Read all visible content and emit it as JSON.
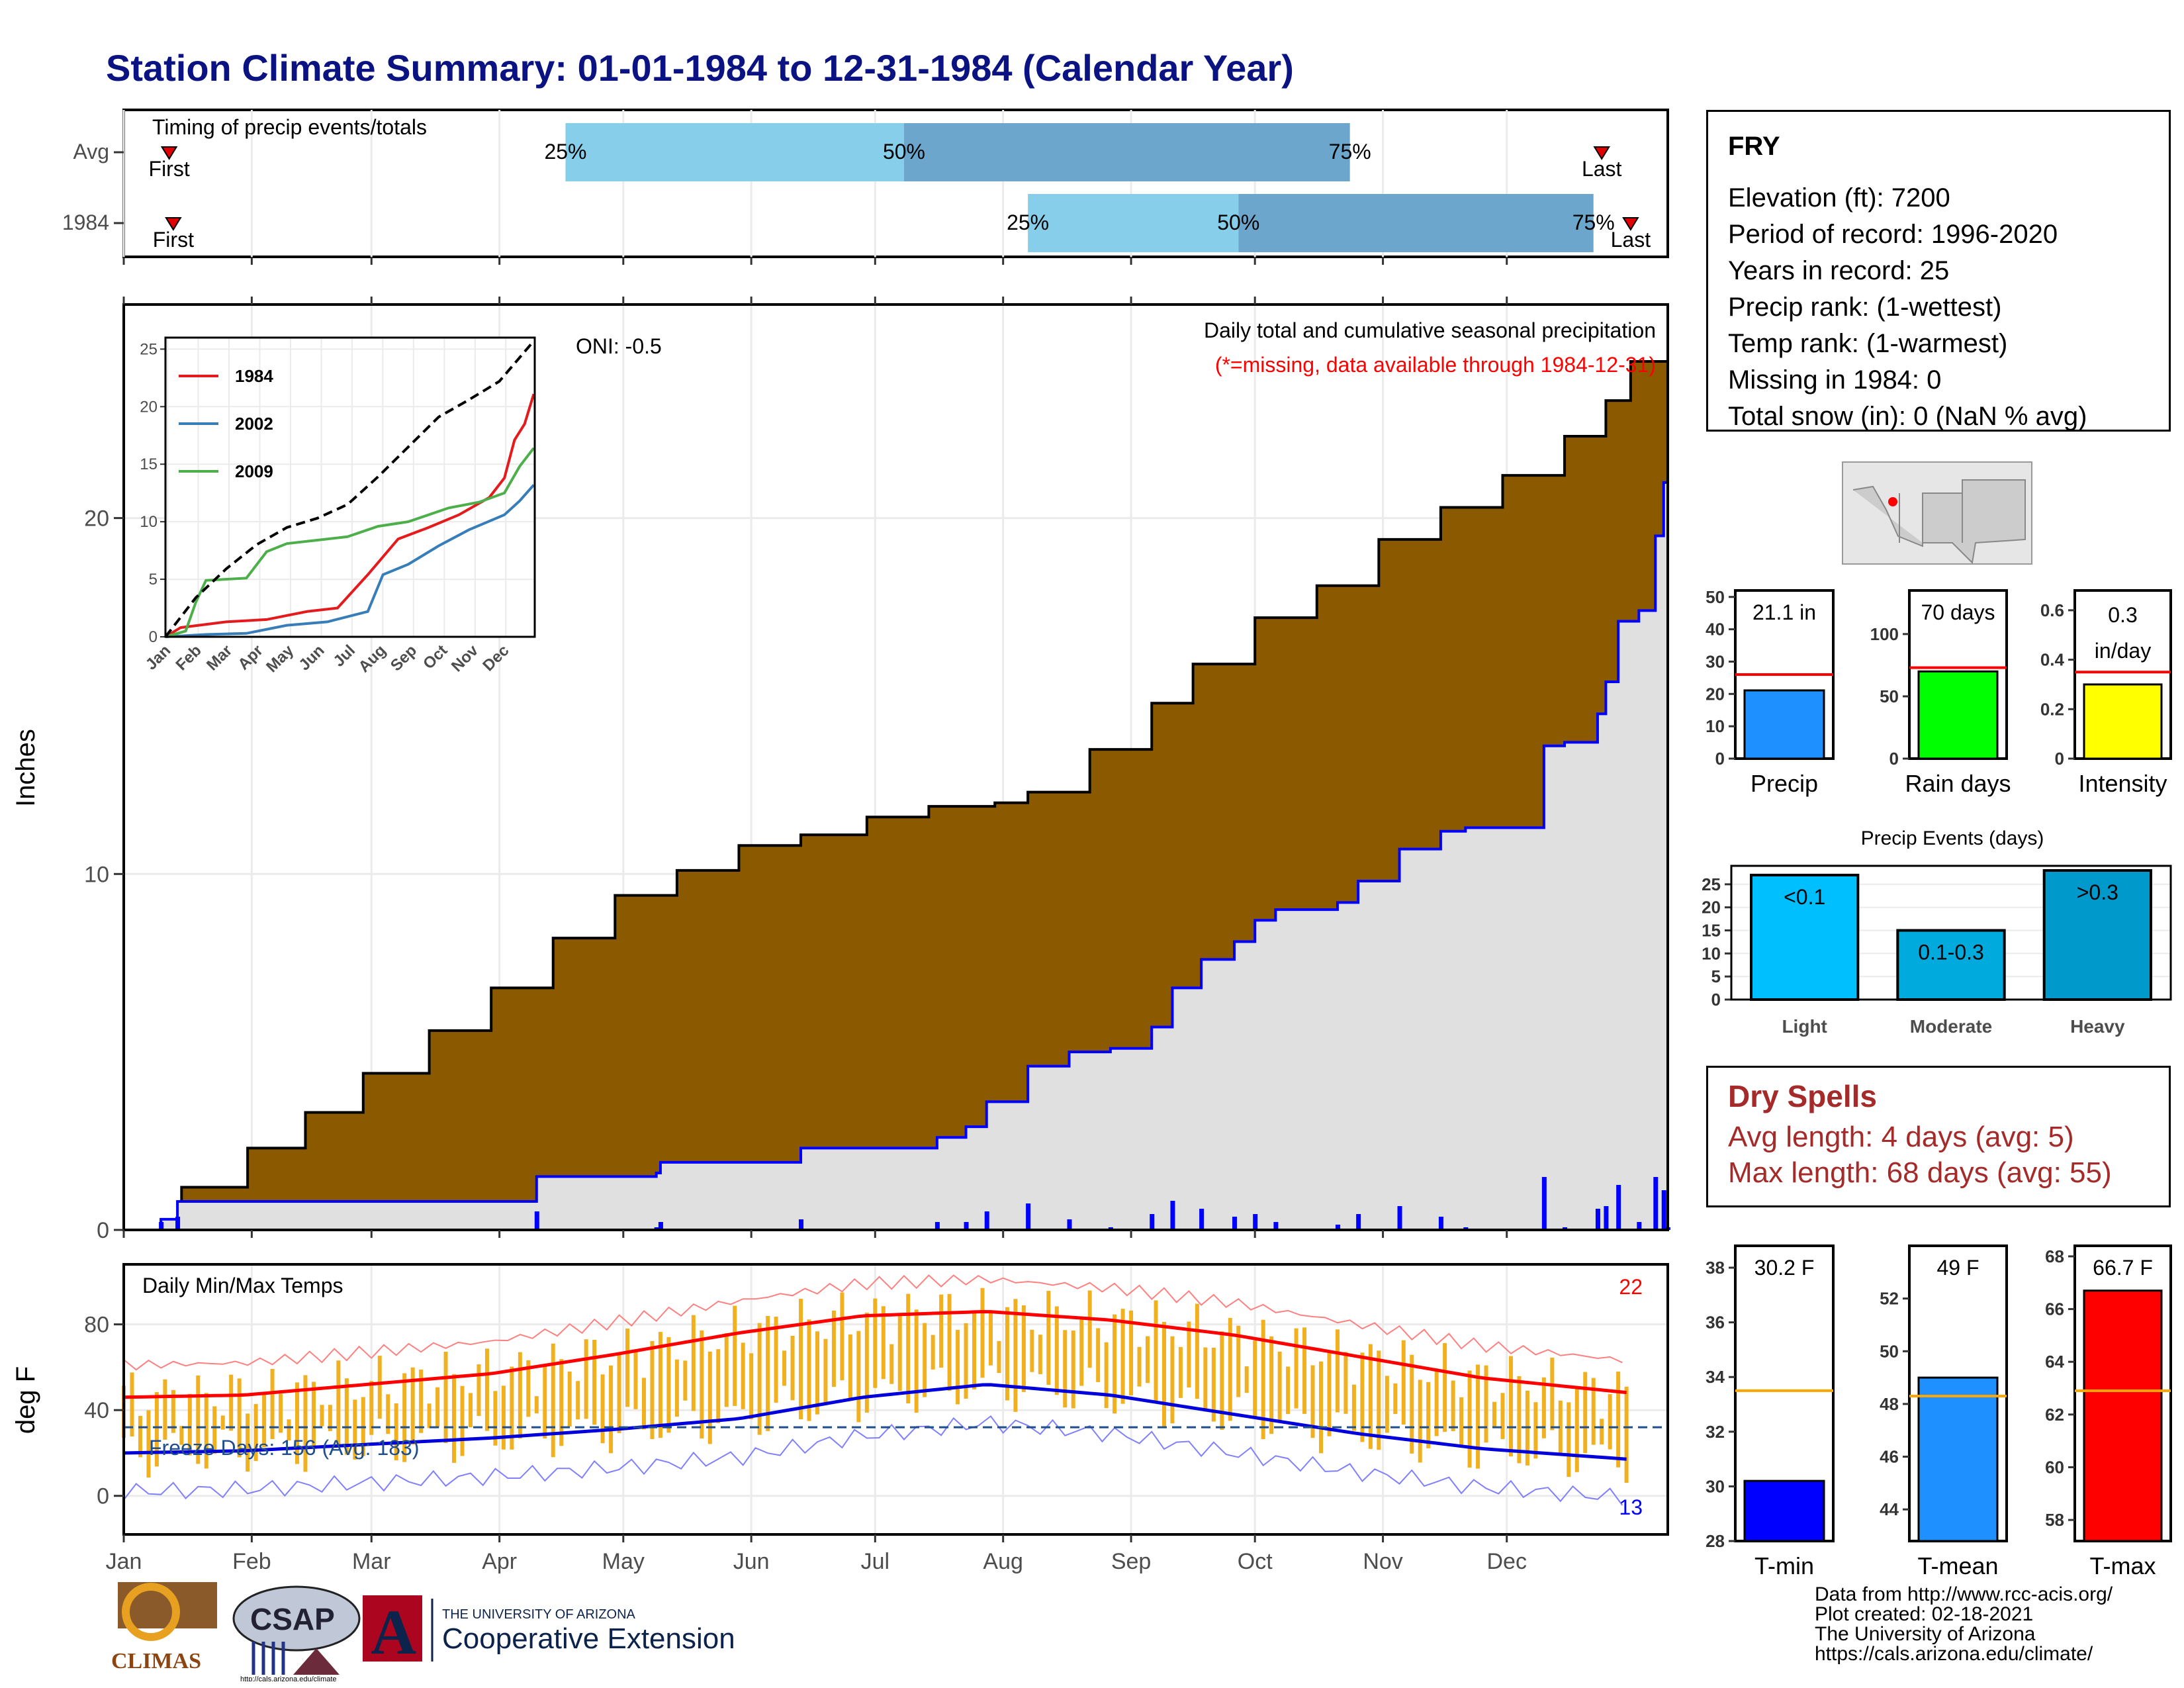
{
  "title": "Station Climate Summary: 01-01-1984 to 12-31-1984 (Calendar Year)",
  "station": {
    "name": "FRY",
    "lines": [
      "Elevation (ft): 7200",
      "Period of record: 1996-2020",
      "Years in record: 25",
      "Precip rank:  (1-wettest)",
      "Temp rank:  (1-warmest)",
      "Missing in 1984: 0",
      "Total snow (in): 0 (NaN % avg)"
    ]
  },
  "dry_spells": {
    "heading": "Dry Spells",
    "avg_length": "Avg length: 4 days (avg: 5)",
    "max_length": "Max length: 68 days (avg: 55)"
  },
  "footer": {
    "lines": [
      "Data from http://www.rcc-acis.org/",
      "Plot created: 02-18-2021",
      "The University of Arizona",
      "https://cals.arizona.edu/climate/"
    ]
  },
  "logos": {
    "climas": "CLIMAS",
    "csap": "CSAP",
    "csap_url": "http://cals.arizona.edu/climate",
    "ua_small": "THE UNIVERSITY OF ARIZONA",
    "ua_big": "Cooperative Extension",
    "ua_letter": "A"
  },
  "colors": {
    "title": "#0b1382",
    "light_blue": "#87ceeb",
    "mid_blue": "#6ca6cd",
    "brown": "#8b5a00",
    "gray_fill": "#e0e0e0",
    "cum_line": "#0000ff",
    "temp_bar": "#f0b020",
    "tmax_line": "#ff0000",
    "tmin_line": "#0000dd",
    "dry_text": "#a52a2a"
  },
  "chart_data": [
    {
      "id": "timing",
      "type": "bar",
      "title": "Timing of precip events/totals",
      "rows": [
        "Avg",
        "1984"
      ],
      "markers": {
        "Avg": {
          "first": "01-12",
          "p25": "04-17",
          "p50": "07-08",
          "p75": "10-24",
          "last": "12-24"
        },
        "1984": {
          "first": "01-13",
          "p25": "08-07",
          "p50": "09-27",
          "p75": "12-22",
          "last": "12-31"
        }
      },
      "labels": {
        "first": "First",
        "last": "Last",
        "p25": "25%",
        "p50": "50%",
        "p75": "75%"
      }
    },
    {
      "id": "cumulative",
      "type": "area",
      "ylabel": "Inches",
      "caption": "Daily total and cumulative seasonal precipitation",
      "note": "(*=missing, data available through 1984-12-31)",
      "oni": "ONI: -0.5",
      "ylim": [
        0,
        26
      ],
      "yticks": [
        0,
        10,
        20
      ],
      "months": [
        "Jan",
        "Feb",
        "Mar",
        "Apr",
        "May",
        "Jun",
        "Jul",
        "Aug",
        "Sep",
        "Oct",
        "Nov",
        "Dec"
      ],
      "avg_cumulative": [
        [
          1,
          0
        ],
        [
          15,
          1.2
        ],
        [
          31,
          2.3
        ],
        [
          45,
          3.3
        ],
        [
          59,
          4.4
        ],
        [
          75,
          5.6
        ],
        [
          90,
          6.8
        ],
        [
          105,
          8.2
        ],
        [
          120,
          9.4
        ],
        [
          135,
          10.1
        ],
        [
          150,
          10.8
        ],
        [
          165,
          11.1
        ],
        [
          181,
          11.6
        ],
        [
          196,
          11.9
        ],
        [
          212,
          12.0
        ],
        [
          220,
          12.3
        ],
        [
          235,
          13.5
        ],
        [
          250,
          14.8
        ],
        [
          260,
          15.9
        ],
        [
          275,
          17.2
        ],
        [
          290,
          18.1
        ],
        [
          305,
          19.4
        ],
        [
          320,
          20.3
        ],
        [
          335,
          21.2
        ],
        [
          350,
          22.3
        ],
        [
          360,
          23.3
        ],
        [
          366,
          24.4
        ],
        [
          375,
          25.7
        ]
      ],
      "year_cumulative": [
        [
          1,
          0
        ],
        [
          10,
          0.3
        ],
        [
          14,
          0.8
        ],
        [
          100,
          0.8
        ],
        [
          101,
          1.5
        ],
        [
          130,
          1.6
        ],
        [
          131,
          1.9
        ],
        [
          165,
          2.3
        ],
        [
          197,
          2.3
        ],
        [
          198,
          2.6
        ],
        [
          205,
          2.9
        ],
        [
          210,
          3.6
        ],
        [
          220,
          4.6
        ],
        [
          230,
          5.0
        ],
        [
          240,
          5.1
        ],
        [
          250,
          5.7
        ],
        [
          255,
          6.8
        ],
        [
          262,
          7.6
        ],
        [
          270,
          8.1
        ],
        [
          275,
          8.7
        ],
        [
          280,
          9.0
        ],
        [
          295,
          9.2
        ],
        [
          300,
          9.8
        ],
        [
          310,
          10.7
        ],
        [
          320,
          11.2
        ],
        [
          326,
          11.3
        ],
        [
          343,
          11.3
        ],
        [
          345,
          13.6
        ],
        [
          350,
          13.7
        ],
        [
          358,
          14.5
        ],
        [
          360,
          15.4
        ],
        [
          363,
          17.1
        ],
        [
          368,
          17.4
        ],
        [
          372,
          19.5
        ],
        [
          374,
          21.0
        ],
        [
          375,
          21.1
        ]
      ],
      "inset": {
        "type": "line",
        "xlabels": [
          "Jan",
          "Feb",
          "Mar",
          "Apr",
          "May",
          "Jun",
          "Jul",
          "Aug",
          "Sep",
          "Oct",
          "Nov",
          "Dec"
        ],
        "yticks": [
          0,
          5,
          10,
          15,
          20,
          25
        ],
        "ylim": [
          0,
          26
        ],
        "series": [
          {
            "name": "1984",
            "color": "#e41a1c",
            "values": [
              [
                0,
                0
              ],
              [
                15,
                0.8
              ],
              [
                60,
                1.3
              ],
              [
                100,
                1.5
              ],
              [
                140,
                2.2
              ],
              [
                170,
                2.5
              ],
              [
                200,
                5.4
              ],
              [
                230,
                8.5
              ],
              [
                260,
                9.5
              ],
              [
                290,
                10.6
              ],
              [
                320,
                12.1
              ],
              [
                335,
                13.8
              ],
              [
                345,
                17.1
              ],
              [
                355,
                18.5
              ],
              [
                364,
                21.1
              ]
            ]
          },
          {
            "name": "2002",
            "color": "#377eb8",
            "values": [
              [
                0,
                0
              ],
              [
                40,
                0.2
              ],
              [
                80,
                0.3
              ],
              [
                120,
                1.0
              ],
              [
                160,
                1.3
              ],
              [
                200,
                2.2
              ],
              [
                215,
                5.4
              ],
              [
                240,
                6.3
              ],
              [
                270,
                7.9
              ],
              [
                300,
                9.3
              ],
              [
                335,
                10.6
              ],
              [
                350,
                11.8
              ],
              [
                364,
                13.2
              ]
            ]
          },
          {
            "name": "2009",
            "color": "#4daf4a",
            "values": [
              [
                0,
                0
              ],
              [
                20,
                0.5
              ],
              [
                30,
                3.0
              ],
              [
                40,
                4.9
              ],
              [
                80,
                5.1
              ],
              [
                100,
                7.4
              ],
              [
                120,
                8.1
              ],
              [
                150,
                8.4
              ],
              [
                180,
                8.7
              ],
              [
                210,
                9.6
              ],
              [
                240,
                10.0
              ],
              [
                280,
                11.2
              ],
              [
                310,
                11.7
              ],
              [
                335,
                12.5
              ],
              [
                350,
                14.8
              ],
              [
                364,
                16.4
              ]
            ]
          },
          {
            "name": "avg",
            "color": "#000000",
            "values": [
              [
                0,
                0
              ],
              [
                30,
                3.4
              ],
              [
                60,
                5.9
              ],
              [
                90,
                8.0
              ],
              [
                120,
                9.5
              ],
              [
                150,
                10.3
              ],
              [
                180,
                11.5
              ],
              [
                210,
                13.9
              ],
              [
                240,
                16.5
              ],
              [
                270,
                19.1
              ],
              [
                300,
                20.6
              ],
              [
                330,
                22.2
              ],
              [
                364,
                25.7
              ]
            ]
          }
        ]
      }
    },
    {
      "id": "temps",
      "type": "line",
      "title": "Daily Min/Max Temps",
      "ylabel": "deg F",
      "ylim": [
        -18,
        108
      ],
      "yticks": [
        0,
        40,
        80
      ],
      "freeze_label": "Freeze Days: 156 (Avg: 183)",
      "freeze_line": 32,
      "record_high_count": "22",
      "record_low_count": "13",
      "xlabels": [
        "Jan",
        "Feb",
        "Mar",
        "Apr",
        "May",
        "Jun",
        "Jul",
        "Aug",
        "Sep",
        "Oct",
        "Nov",
        "Dec"
      ],
      "normal_max": [
        [
          1,
          46
        ],
        [
          30,
          47
        ],
        [
          60,
          52
        ],
        [
          90,
          57
        ],
        [
          120,
          66
        ],
        [
          150,
          76
        ],
        [
          180,
          84
        ],
        [
          210,
          86
        ],
        [
          240,
          82
        ],
        [
          270,
          75
        ],
        [
          300,
          65
        ],
        [
          330,
          55
        ],
        [
          366,
          48
        ]
      ],
      "normal_min": [
        [
          1,
          20
        ],
        [
          30,
          21
        ],
        [
          60,
          24
        ],
        [
          90,
          27
        ],
        [
          120,
          31
        ],
        [
          150,
          36
        ],
        [
          180,
          46
        ],
        [
          210,
          52
        ],
        [
          240,
          47
        ],
        [
          270,
          38
        ],
        [
          300,
          29
        ],
        [
          330,
          22
        ],
        [
          366,
          17
        ]
      ]
    },
    {
      "id": "annual_totals",
      "type": "bar",
      "categories": [
        "Precip",
        "Rain days",
        "Intensity"
      ],
      "values": [
        21.1,
        70,
        0.3
      ],
      "averages": [
        26,
        73,
        0.35
      ],
      "labels": [
        "21.1 in",
        "70 days",
        "0.3 in/day"
      ],
      "yticks": [
        [
          0,
          10,
          20,
          30,
          40,
          50
        ],
        [
          0,
          50,
          100
        ],
        [
          0.0,
          0.2,
          0.4,
          0.6
        ]
      ],
      "ylims": [
        [
          0,
          52
        ],
        [
          0,
          135
        ],
        [
          0,
          0.68
        ]
      ],
      "colors": [
        "#1e90ff",
        "#00ff00",
        "#ffff00"
      ]
    },
    {
      "id": "precip_events",
      "type": "bar",
      "title": "Precip Events (days)",
      "categories": [
        "Light",
        "Moderate",
        "Heavy"
      ],
      "bar_labels": [
        "<0.1",
        "0.1-0.3",
        ">0.3"
      ],
      "values": [
        27,
        15,
        28
      ],
      "yticks": [
        0,
        5,
        10,
        15,
        20,
        25
      ],
      "ylim": [
        0,
        29
      ],
      "colors": [
        "#00bfff",
        "#00aadd",
        "#0099cc"
      ]
    },
    {
      "id": "temp_summary",
      "type": "bar",
      "categories": [
        "T-min",
        "T-mean",
        "T-max"
      ],
      "values": [
        30.2,
        49,
        66.7
      ],
      "averages": [
        33.5,
        48.3,
        62.9
      ],
      "labels": [
        "30.2 F",
        "49 F",
        "66.7 F"
      ],
      "yticks": [
        [
          28,
          30,
          32,
          34,
          36,
          38
        ],
        [
          44,
          46,
          48,
          50,
          52
        ],
        [
          58,
          60,
          62,
          64,
          66,
          68
        ]
      ],
      "ylims": [
        [
          28,
          38.8
        ],
        [
          42.8,
          54
        ],
        [
          57.2,
          68.4
        ]
      ],
      "colors": [
        "#0000ff",
        "#1e90ff",
        "#ff0000"
      ]
    }
  ]
}
